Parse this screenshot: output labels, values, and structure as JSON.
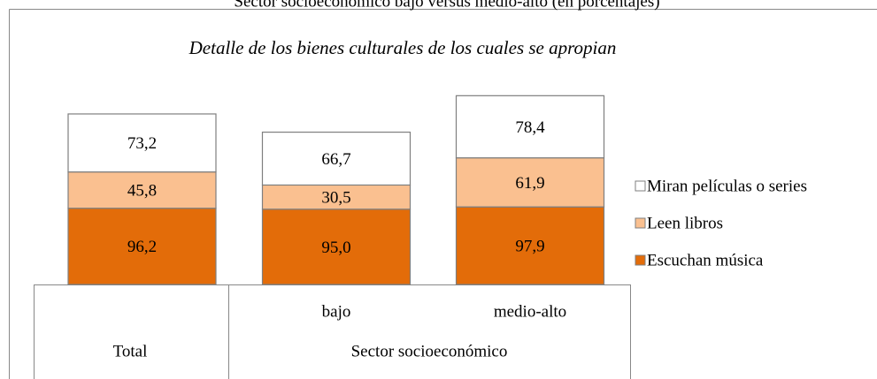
{
  "chart_data": {
    "type": "stacked_bar",
    "title": "Sector socioeconómico bajo versus medio-alto (en porcentajes)",
    "subtitle": "Detalle de los bienes culturales de los cuales se apropian",
    "categories": [
      "Total",
      "bajo",
      "medio-alto"
    ],
    "group_label": "Sector socioeconómico",
    "series": [
      {
        "name": "Escuchan música",
        "color": "#e36c09",
        "values": [
          96.2,
          95.0,
          97.9
        ],
        "value_labels": [
          "96,2",
          "95,0",
          "97,9"
        ]
      },
      {
        "name": "Leen libros",
        "color": "#fac090",
        "values": [
          45.8,
          30.5,
          61.9
        ],
        "value_labels": [
          "45,8",
          "30,5",
          "61,9"
        ]
      },
      {
        "name": "Miran películas o series",
        "color": "#ffffff",
        "values": [
          73.2,
          66.7,
          78.4
        ],
        "value_labels": [
          "73,2",
          "66,7",
          "78,4"
        ]
      }
    ],
    "legend": "right"
  }
}
